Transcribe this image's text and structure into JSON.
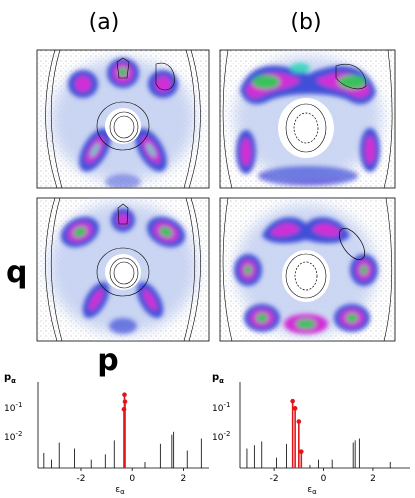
{
  "panels": {
    "a_label": "(a)",
    "b_label": "(b)"
  },
  "axes": {
    "q_label": "q",
    "p_label": "p"
  },
  "colors": {
    "outer_halo": "#c7d3f2",
    "blue": "#3f4fd8",
    "magenta": "#d12fd6",
    "green": "#38c25a",
    "dark_green": "#0d7a1d",
    "cyan": "#3fd6c2",
    "red_stem": "#e0161a"
  },
  "spectra": [
    {
      "id": "a",
      "ylabel_main": "p",
      "ylabel_sub": "α",
      "xlabel_main": "ε",
      "xlabel_sub": "α",
      "ytick_labels": [
        "10",
        "10"
      ],
      "ytick_exps": [
        "-1",
        "-2"
      ],
      "xtick_labels": [
        "-2",
        "0",
        "2"
      ],
      "xtick_values": [
        -2,
        0,
        2
      ],
      "xlim": [
        -3.6,
        3.0
      ],
      "ylog_range": [
        -2.5,
        0.35
      ],
      "black_stems": [
        {
          "x": -3.45,
          "p": 0.01
        },
        {
          "x": -3.15,
          "p": 0.006
        },
        {
          "x": -2.85,
          "p": 0.022
        },
        {
          "x": -2.25,
          "p": 0.014
        },
        {
          "x": -1.6,
          "p": 0.006
        },
        {
          "x": -1.05,
          "p": 0.009
        },
        {
          "x": -0.7,
          "p": 0.026
        },
        {
          "x": 0.5,
          "p": 0.005
        },
        {
          "x": 1.1,
          "p": 0.02
        },
        {
          "x": 1.55,
          "p": 0.04
        },
        {
          "x": 1.62,
          "p": 0.05
        },
        {
          "x": 2.15,
          "p": 0.012
        },
        {
          "x": 2.7,
          "p": 0.03
        }
      ],
      "red_stems": [
        {
          "x": -0.3,
          "p": 0.85
        },
        {
          "x": -0.28,
          "p": 0.5
        },
        {
          "x": -0.32,
          "p": 0.28
        }
      ]
    },
    {
      "id": "b",
      "ylabel_main": "p",
      "ylabel_sub": "α",
      "xlabel_main": "ε",
      "xlabel_sub": "α",
      "ytick_labels": [
        "10",
        "10"
      ],
      "ytick_exps": [
        "-1",
        "-2"
      ],
      "xtick_labels": [
        "-2",
        "0",
        "2"
      ],
      "xtick_values": [
        -2,
        0,
        2
      ],
      "xlim": [
        -3.3,
        3.5
      ],
      "ylog_range": [
        -2.5,
        0.35
      ],
      "black_stems": [
        {
          "x": -3.1,
          "p": 0.014
        },
        {
          "x": -2.8,
          "p": 0.018
        },
        {
          "x": -2.5,
          "p": 0.024
        },
        {
          "x": -1.9,
          "p": 0.007
        },
        {
          "x": -1.5,
          "p": 0.02
        },
        {
          "x": -0.55,
          "p": 0.004
        },
        {
          "x": -0.2,
          "p": 0.006
        },
        {
          "x": 0.35,
          "p": 0.006
        },
        {
          "x": 1.2,
          "p": 0.022
        },
        {
          "x": 1.28,
          "p": 0.026
        },
        {
          "x": 1.45,
          "p": 0.03
        },
        {
          "x": 2.7,
          "p": 0.005
        }
      ],
      "red_stems": [
        {
          "x": -1.25,
          "p": 0.52
        },
        {
          "x": -1.15,
          "p": 0.3
        },
        {
          "x": -1.0,
          "p": 0.11
        },
        {
          "x": -0.9,
          "p": 0.011
        }
      ]
    }
  ]
}
